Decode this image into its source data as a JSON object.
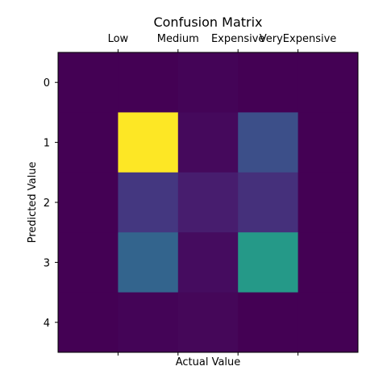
{
  "chart_data": {
    "type": "heatmap",
    "title": "Confusion Matrix",
    "xlabel": "Actual Value",
    "ylabel": "Predicted Value",
    "x_tick_labels": [
      "Low",
      "Medium",
      "Expensive",
      "VeryExpensive"
    ],
    "x_tick_positions": [
      0.5,
      1.5,
      2.5,
      3.5
    ],
    "y_tick_labels": [
      "0",
      "1",
      "2",
      "3",
      "4"
    ],
    "x_range": [
      -0.5,
      4.5
    ],
    "y_range": [
      -0.5,
      4.5
    ],
    "colormap": "viridis",
    "vmin": 0,
    "vmax": 1,
    "grid": false,
    "values": [
      [
        0.0,
        0.0,
        0.01,
        0.0,
        0.0
      ],
      [
        0.0,
        1.0,
        0.03,
        0.3,
        0.0
      ],
      [
        0.0,
        0.2,
        0.1,
        0.17,
        0.0
      ],
      [
        0.0,
        0.4,
        0.04,
        0.65,
        0.0
      ],
      [
        0.0,
        0.01,
        0.02,
        0.0,
        0.0
      ]
    ]
  }
}
